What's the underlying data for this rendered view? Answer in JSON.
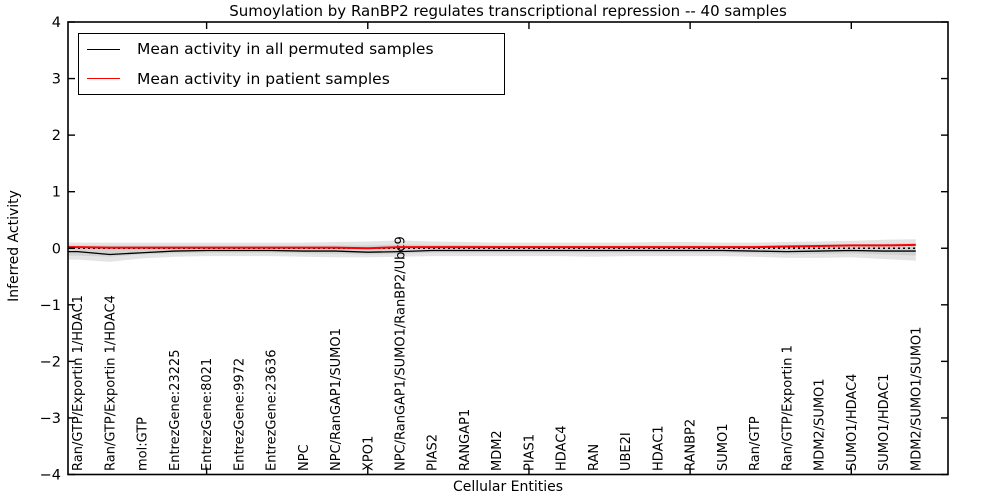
{
  "figure": {
    "title": "Sumoylation by RanBP2 regulates transcriptional repression -- 40 samples",
    "xlabel": "Cellular Entities",
    "ylabel": "Inferred Activity"
  },
  "legend": {
    "items": [
      {
        "label": "Mean activity in all permuted samples",
        "color": "#000000"
      },
      {
        "label": "Mean activity in patient samples",
        "color": "#ff0000"
      }
    ]
  },
  "chart_data": {
    "type": "line",
    "title": "Sumoylation by RanBP2 regulates transcriptional repression -- 40 samples",
    "xlabel": "Cellular Entities",
    "ylabel": "Inferred Activity",
    "ylim": [
      -4,
      4
    ],
    "yticks": [
      4,
      3,
      2,
      1,
      0,
      -1,
      -2,
      -3,
      -4
    ],
    "xlim": [
      0.7,
      28
    ],
    "xticks_numeric": [
      5,
      10,
      15,
      20,
      25
    ],
    "grid": false,
    "legend_position": "upper left",
    "categories": [
      "Ran/GTP/Exportin 1/HDAC1",
      "Ran/GTP/Exportin 1/HDAC4",
      "mol:GTP",
      "EntrezGene:23225",
      "EntrezGene:8021",
      "EntrezGene:9972",
      "EntrezGene:23636",
      "NPC",
      "NPC/RanGAP1/SUMO1",
      "XPO1",
      "NPC/RanGAP1/SUMO1/RanBP2/Ubc9",
      "PIAS2",
      "RANGAP1",
      "MDM2",
      "PIAS1",
      "HDAC4",
      "RAN",
      "UBE2I",
      "HDAC1",
      "RANBP2",
      "SUMO1",
      "Ran/GTP",
      "Ran/GTP/Exportin 1",
      "MDM2/SUMO1",
      "SUMO1/HDAC4",
      "SUMO1/HDAC1",
      "MDM2/SUMO1/SUMO1"
    ],
    "series": [
      {
        "name": "Mean activity in all permuted samples",
        "color": "#000000",
        "width": 1.3,
        "values": [
          -0.06,
          -0.11,
          -0.08,
          -0.05,
          -0.04,
          -0.04,
          -0.04,
          -0.05,
          -0.05,
          -0.07,
          -0.06,
          -0.04,
          -0.04,
          -0.04,
          -0.04,
          -0.04,
          -0.04,
          -0.04,
          -0.04,
          -0.04,
          -0.04,
          -0.05,
          -0.06,
          -0.05,
          -0.04,
          -0.05,
          -0.05
        ]
      },
      {
        "name": "Mean activity in patient samples",
        "color": "#ff0000",
        "width": 2,
        "values": [
          0.02,
          0.01,
          0.01,
          0.01,
          0.01,
          0.01,
          0.01,
          0.01,
          0.01,
          0.0,
          0.02,
          0.02,
          0.02,
          0.02,
          0.02,
          0.02,
          0.02,
          0.02,
          0.02,
          0.02,
          0.02,
          0.02,
          0.03,
          0.04,
          0.05,
          0.05,
          0.06
        ]
      }
    ],
    "zero_line": {
      "y": 0,
      "style": "dotted",
      "color": "#000000"
    },
    "bands": [
      {
        "name": "permuted-spread-outer",
        "color": "#e4e4e4",
        "upper": [
          0.1,
          0.1,
          0.1,
          0.1,
          0.1,
          0.1,
          0.1,
          0.1,
          0.11,
          0.12,
          0.14,
          0.12,
          0.11,
          0.1,
          0.1,
          0.1,
          0.1,
          0.1,
          0.11,
          0.11,
          0.1,
          0.1,
          0.11,
          0.12,
          0.13,
          0.15,
          0.16
        ],
        "lower": [
          -0.2,
          -0.24,
          -0.18,
          -0.15,
          -0.14,
          -0.14,
          -0.14,
          -0.15,
          -0.16,
          -0.16,
          -0.15,
          -0.14,
          -0.14,
          -0.14,
          -0.14,
          -0.14,
          -0.15,
          -0.14,
          -0.14,
          -0.14,
          -0.14,
          -0.15,
          -0.17,
          -0.17,
          -0.16,
          -0.19,
          -0.22
        ]
      },
      {
        "name": "permuted-spread-inner",
        "color": "#d2d2d2",
        "upper": [
          0.05,
          0.05,
          0.05,
          0.05,
          0.05,
          0.05,
          0.05,
          0.05,
          0.05,
          0.05,
          0.07,
          0.06,
          0.06,
          0.05,
          0.05,
          0.05,
          0.05,
          0.05,
          0.05,
          0.05,
          0.05,
          0.05,
          0.06,
          0.07,
          0.07,
          0.08,
          0.09
        ],
        "lower": [
          -0.13,
          -0.15,
          -0.11,
          -0.09,
          -0.08,
          -0.08,
          -0.08,
          -0.09,
          -0.1,
          -0.11,
          -0.1,
          -0.08,
          -0.08,
          -0.08,
          -0.08,
          -0.08,
          -0.08,
          -0.08,
          -0.08,
          -0.08,
          -0.08,
          -0.09,
          -0.11,
          -0.1,
          -0.09,
          -0.11,
          -0.13
        ]
      }
    ]
  }
}
